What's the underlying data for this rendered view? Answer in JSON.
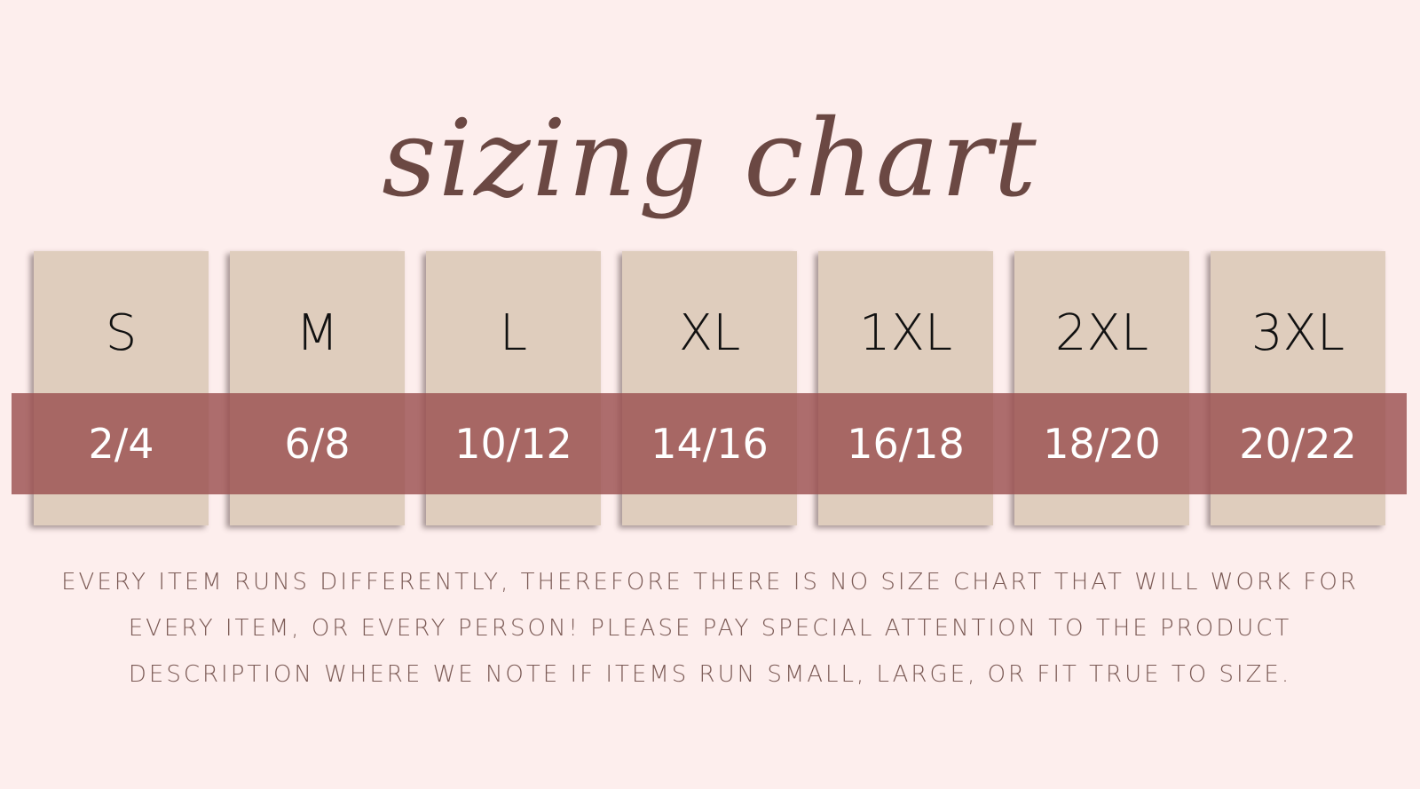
{
  "title": "sizing chart",
  "sizes": [
    {
      "label": "S",
      "us": "2/4"
    },
    {
      "label": "M",
      "us": "6/8"
    },
    {
      "label": "L",
      "us": "10/12"
    },
    {
      "label": "XL",
      "us": "14/16"
    },
    {
      "label": "1XL",
      "us": "16/18"
    },
    {
      "label": "2XL",
      "us": "18/20"
    },
    {
      "label": "3XL",
      "us": "20/22"
    }
  ],
  "note": "EVERY ITEM RUNS DIFFERENTLY, THEREFORE THERE IS NO SIZE CHART THAT WILL WORK FOR EVERY ITEM, OR EVERY PERSON! PLEASE PAY SPECIAL ATTENTION TO THE PRODUCT DESCRIPTION WHERE WE NOTE IF ITEMS RUN SMALL, LARGE, OR FIT TRUE TO SIZE.",
  "colors": {
    "background": "#fdeeed",
    "card": "#dfcdbd",
    "band": "#975750",
    "title": "#6b4843"
  }
}
